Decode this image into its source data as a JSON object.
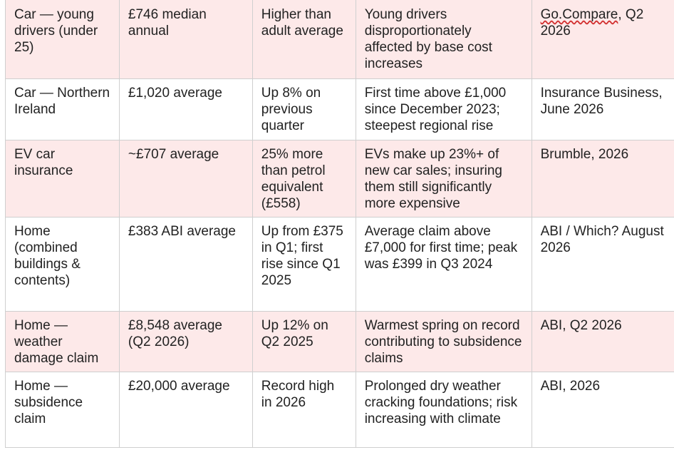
{
  "rows": [
    {
      "category": "Car — young drivers (under 25)",
      "cost": "£746 median annual",
      "change": "Higher than adult average",
      "notes": "Young drivers disproportionately affected by base cost increases",
      "source_flagged": "Go.Compare",
      "source_rest": ", Q2 2026",
      "shaded": true
    },
    {
      "category": "Car — Northern Ireland",
      "cost": "£1,020 average",
      "change": "Up 8% on previous quarter",
      "notes": "First time above £1,000 since December 2023; steepest regional rise",
      "source": "Insurance Business, June 2026",
      "shaded": false
    },
    {
      "category": "EV car insurance",
      "cost": "~£707 average",
      "change": "25% more than petrol equivalent (£558)",
      "notes": "EVs make up 23%+ of new car sales; insuring them still significantly more expensive",
      "source": "Brumble, 2026",
      "shaded": true
    },
    {
      "category": "Home (combined buildings & contents)",
      "cost": "£383 ABI average",
      "change": "Up from £375 in Q1; first rise since Q1 2025",
      "notes": "Average claim above £7,000 for first time; peak was £399 in Q3 2024",
      "source": "ABI / Which? August 2026",
      "shaded": false
    },
    {
      "category": "Home — weather damage claim",
      "cost": "£8,548 average (Q2 2026)",
      "change": "Up 12% on Q2 2025",
      "notes": "Warmest spring on record contributing to subsidence claims",
      "source": "ABI, Q2 2026",
      "shaded": true
    },
    {
      "category": "Home — subsidence claim",
      "cost": "£20,000 average",
      "change": "Record high in 2026",
      "notes": "Prolonged dry weather cracking foundations; risk increasing with climate",
      "source": "ABI, 2026",
      "shaded": false
    }
  ],
  "colors": {
    "shaded_row": "#fde9e9",
    "text": "#222222",
    "border": "#cfcfcf",
    "spellcheck_underline": "#d23030"
  }
}
